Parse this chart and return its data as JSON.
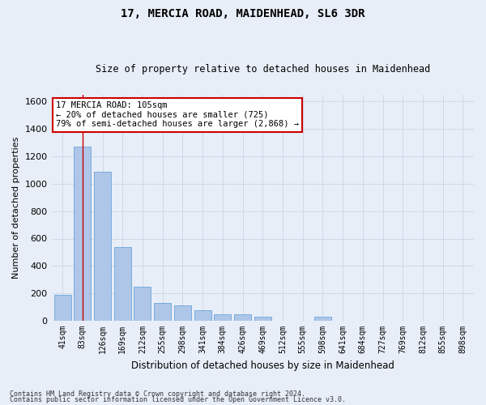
{
  "title1": "17, MERCIA ROAD, MAIDENHEAD, SL6 3DR",
  "title2": "Size of property relative to detached houses in Maidenhead",
  "xlabel": "Distribution of detached houses by size in Maidenhead",
  "ylabel": "Number of detached properties",
  "categories": [
    "41sqm",
    "83sqm",
    "126sqm",
    "169sqm",
    "212sqm",
    "255sqm",
    "298sqm",
    "341sqm",
    "384sqm",
    "426sqm",
    "469sqm",
    "512sqm",
    "555sqm",
    "598sqm",
    "641sqm",
    "684sqm",
    "727sqm",
    "769sqm",
    "812sqm",
    "855sqm",
    "898sqm"
  ],
  "values": [
    190,
    1270,
    1090,
    540,
    250,
    130,
    110,
    80,
    50,
    50,
    30,
    0,
    0,
    30,
    0,
    0,
    0,
    0,
    0,
    0,
    0
  ],
  "bar_color": "#aec6e8",
  "bar_edge_color": "#5b9bd5",
  "grid_color": "#d0d8e8",
  "bg_color": "#e8eef8",
  "annotation_text": "17 MERCIA ROAD: 105sqm\n← 20% of detached houses are smaller (725)\n79% of semi-detached houses are larger (2,868) →",
  "annotation_box_color": "#ffffff",
  "annotation_box_edge": "#cc0000",
  "vline_x": 1.0,
  "vline_color": "#cc0000",
  "ylim": [
    0,
    1650
  ],
  "yticks": [
    0,
    200,
    400,
    600,
    800,
    1000,
    1200,
    1400,
    1600
  ],
  "footer1": "Contains HM Land Registry data © Crown copyright and database right 2024.",
  "footer2": "Contains public sector information licensed under the Open Government Licence v3.0."
}
